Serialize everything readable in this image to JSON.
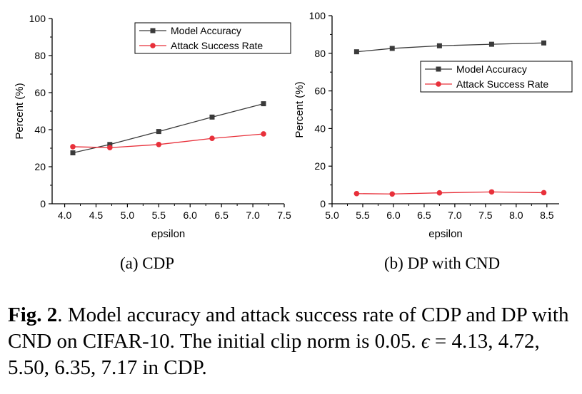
{
  "chart_data": [
    {
      "type": "line",
      "subcaption": "(a)  CDP",
      "xlabel": "epsilon",
      "ylabel": "Percent (%)",
      "xlim": [
        3.8,
        7.5
      ],
      "ylim": [
        0,
        100
      ],
      "xticks": [
        "4.0",
        "4.5",
        "5.0",
        "5.5",
        "6.0",
        "6.5",
        "7.0",
        "7.5"
      ],
      "yticks": [
        "0",
        "20",
        "40",
        "60",
        "80",
        "100"
      ],
      "legend_position": "top-right",
      "series": [
        {
          "name": "Model Accuracy",
          "color": "#3a3a3a",
          "marker": "square",
          "x": [
            4.13,
            4.72,
            5.5,
            6.35,
            7.17
          ],
          "y": [
            27.5,
            32.0,
            39.0,
            46.8,
            54.0
          ]
        },
        {
          "name": "Attack Success Rate",
          "color": "#e8303a",
          "marker": "circle",
          "x": [
            4.13,
            4.72,
            5.5,
            6.35,
            7.17
          ],
          "y": [
            30.8,
            30.3,
            32.0,
            35.3,
            37.7
          ]
        }
      ]
    },
    {
      "type": "line",
      "subcaption": "(b)  DP with CND",
      "xlabel": "epsilon",
      "ylabel": "Percent (%)",
      "xlim": [
        5.0,
        8.7
      ],
      "ylim": [
        0,
        100
      ],
      "xticks": [
        "5.0",
        "5.5",
        "6.0",
        "6.5",
        "7.0",
        "7.5",
        "8.0",
        "8.5"
      ],
      "yticks": [
        "0",
        "20",
        "40",
        "60",
        "80",
        "100"
      ],
      "legend_position": "right",
      "series": [
        {
          "name": "Model Accuracy",
          "color": "#3a3a3a",
          "marker": "square",
          "x": [
            5.4,
            5.98,
            6.75,
            7.6,
            8.45
          ],
          "y": [
            80.8,
            82.6,
            84.0,
            84.8,
            85.5
          ]
        },
        {
          "name": "Attack Success Rate",
          "color": "#e8303a",
          "marker": "circle",
          "x": [
            5.4,
            5.98,
            6.75,
            7.6,
            8.45
          ],
          "y": [
            5.4,
            5.2,
            5.8,
            6.3,
            5.9
          ]
        }
      ]
    }
  ],
  "caption": {
    "label": "Fig. 2",
    "text": ".  Model accuracy and attack success rate of CDP and DP with CND on CIFAR-10.  The initial clip norm is 0.05.",
    "epsilon_symbol": "ϵ",
    "epsilon_text": " = 4.13, 4.72, 5.50, 6.35, 7.17 in CDP."
  }
}
